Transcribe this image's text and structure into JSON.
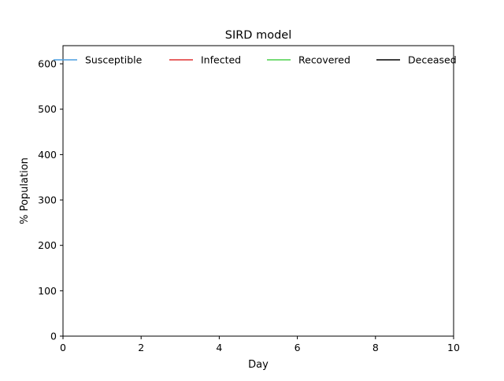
{
  "chart_data": {
    "type": "line",
    "title": "SIRD model",
    "xlabel": "Day",
    "ylabel": "% Population",
    "xlim": [
      0,
      10
    ],
    "ylim": [
      0,
      640
    ],
    "xticks": [
      0,
      2,
      4,
      6,
      8,
      10
    ],
    "yticks": [
      0,
      100,
      200,
      300,
      400,
      500,
      600
    ],
    "grid": false,
    "legend_placement": "top, spanning full width",
    "series": [
      {
        "name": "Susceptible",
        "color": "#4c9fe0",
        "x": [],
        "y": []
      },
      {
        "name": "Infected",
        "color": "#e03030",
        "x": [],
        "y": []
      },
      {
        "name": "Recovered",
        "color": "#4cd04c",
        "x": [],
        "y": []
      },
      {
        "name": "Deceased",
        "color": "#000000",
        "x": [],
        "y": []
      }
    ]
  }
}
